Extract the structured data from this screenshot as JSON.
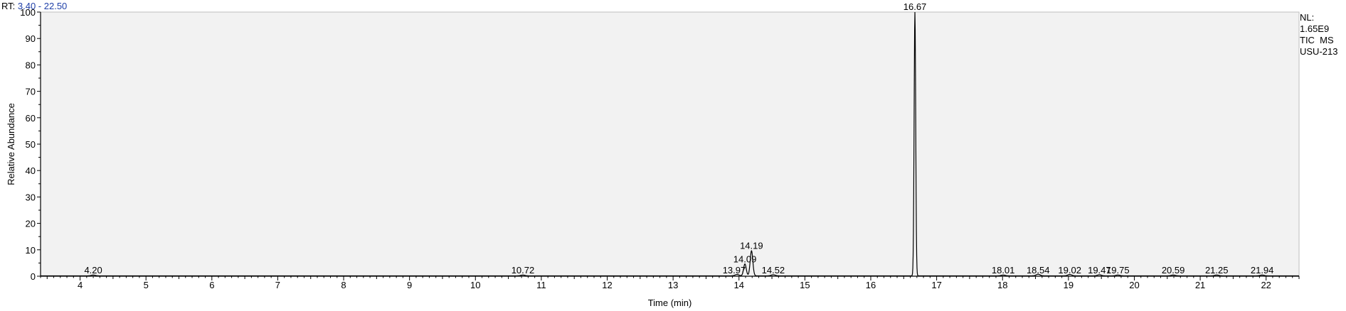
{
  "header": {
    "rt_label": "RT:",
    "rt_range": "3.40 - 22.50"
  },
  "side_info": {
    "nl_label": "NL:",
    "nl_value": "1.65E9",
    "trace": "TIC  MS",
    "sample": "USU-213"
  },
  "colors": {
    "plot_bg": "#f2f2f2",
    "trace": "#000000",
    "range_text": "#1f3fa8"
  },
  "chart_data": {
    "type": "line",
    "xlabel": "Time (min)",
    "ylabel": "Relative Abundance",
    "xlim": [
      3.4,
      22.5
    ],
    "ylim": [
      0,
      100
    ],
    "x_ticks": [
      4,
      5,
      6,
      7,
      8,
      9,
      10,
      11,
      12,
      13,
      14,
      15,
      16,
      17,
      18,
      19,
      20,
      21,
      22
    ],
    "y_ticks": [
      0,
      10,
      20,
      30,
      40,
      50,
      60,
      70,
      80,
      90,
      100
    ],
    "grid": false,
    "peaks": [
      {
        "label": "4.20",
        "rt": 4.2,
        "height": 0.3
      },
      {
        "label": "10.72",
        "rt": 10.72,
        "height": 0.3
      },
      {
        "label": "13.97",
        "rt": 13.97,
        "height": 0.5
      },
      {
        "label": "14.09",
        "rt": 14.09,
        "height": 4.5
      },
      {
        "label": "14.19",
        "rt": 14.19,
        "height": 9.5
      },
      {
        "label": "14.52",
        "rt": 14.52,
        "height": 0.4
      },
      {
        "label": "16.67",
        "rt": 16.67,
        "height": 100
      },
      {
        "label": "18.01",
        "rt": 18.01,
        "height": 0.3
      },
      {
        "label": "18.54",
        "rt": 18.54,
        "height": 0.6
      },
      {
        "label": "19.02",
        "rt": 19.02,
        "height": 0.5
      },
      {
        "label": "19.47",
        "rt": 19.47,
        "height": 0.4
      },
      {
        "label": "19.75",
        "rt": 19.75,
        "height": 0.3
      },
      {
        "label": "20.59",
        "rt": 20.59,
        "height": 0.3
      },
      {
        "label": "21.25",
        "rt": 21.25,
        "height": 0.3
      },
      {
        "label": "21.94",
        "rt": 21.94,
        "height": 0.3
      }
    ]
  }
}
